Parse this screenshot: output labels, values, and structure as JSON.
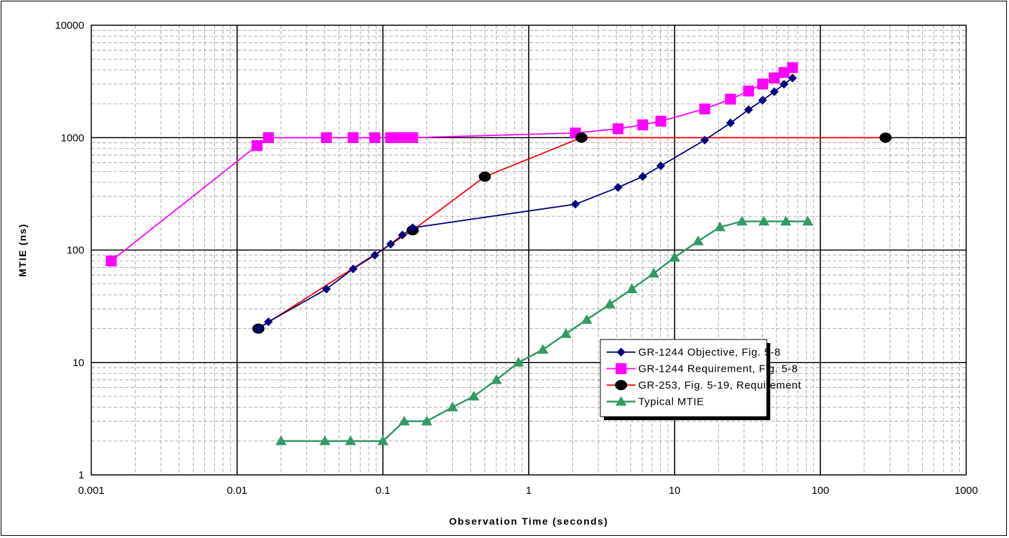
{
  "chart_data": {
    "type": "line",
    "x_scale": "log",
    "y_scale": "log",
    "xlabel": "Observation Time (seconds)",
    "ylabel": "MTIE (ns)",
    "xlim": [
      0.001,
      1000
    ],
    "ylim": [
      1,
      10000
    ],
    "x_ticks": [
      "0.001",
      "0.01",
      "0.1",
      "1",
      "10",
      "100",
      "1000"
    ],
    "y_ticks": [
      "1",
      "10",
      "100",
      "1000",
      "10000"
    ],
    "grid": "major and minor",
    "legend_position": "inside lower-right",
    "series": [
      {
        "name": "GR-1244 Objective, Fig. 5-8",
        "color": "#000080",
        "marker": "diamond",
        "x": [
          0.014,
          0.0164,
          0.041,
          0.0625,
          0.088,
          0.113,
          0.136,
          0.16,
          2.09,
          4.1,
          6.05,
          8.05,
          16.1,
          24.2,
          32.2,
          40.2,
          48.3,
          56.3,
          64.4
        ],
        "y": [
          20,
          23,
          45,
          68,
          90,
          113,
          136,
          158,
          256,
          361,
          451,
          561,
          951,
          1353,
          1773,
          2152,
          2560,
          2986,
          3390
        ]
      },
      {
        "name": "GR-1244 Requirement, Fig. 5-8",
        "color": "#FF00FF",
        "marker": "square",
        "x": [
          0.00137,
          0.0137,
          0.0164,
          0.041,
          0.0625,
          0.088,
          0.113,
          0.125,
          0.136,
          0.16,
          2.09,
          4.1,
          6.05,
          8.05,
          16.1,
          24.2,
          32.2,
          40.2,
          48.3,
          56.3,
          64.4
        ],
        "y": [
          80,
          850,
          1000,
          1000,
          1000,
          1000,
          1000,
          1000,
          1000,
          1000,
          1100,
          1200,
          1300,
          1400,
          1800,
          2200,
          2600,
          3000,
          3400,
          3800,
          4200
        ]
      },
      {
        "name": "GR-253, Fig. 5-19, Requirement",
        "color": "#FF0000",
        "marker": "circle",
        "x": [
          0.014,
          0.16,
          0.5,
          2.3,
          280
        ],
        "y": [
          20,
          150,
          450,
          1000,
          1000
        ]
      },
      {
        "name": "Typical MTIE",
        "color": "#339966",
        "marker": "triangle",
        "x": [
          0.02,
          0.04,
          0.06,
          0.1,
          0.14,
          0.2,
          0.3,
          0.42,
          0.6,
          0.85,
          1.25,
          1.8,
          2.5,
          3.6,
          5.1,
          7.2,
          10,
          14.5,
          20.5,
          29,
          41,
          58,
          82
        ],
        "y": [
          2,
          2,
          2,
          2,
          3,
          3,
          4,
          5,
          7,
          10,
          13,
          18,
          24,
          33,
          45,
          62,
          86,
          120,
          160,
          180,
          180,
          180,
          180
        ]
      }
    ]
  }
}
